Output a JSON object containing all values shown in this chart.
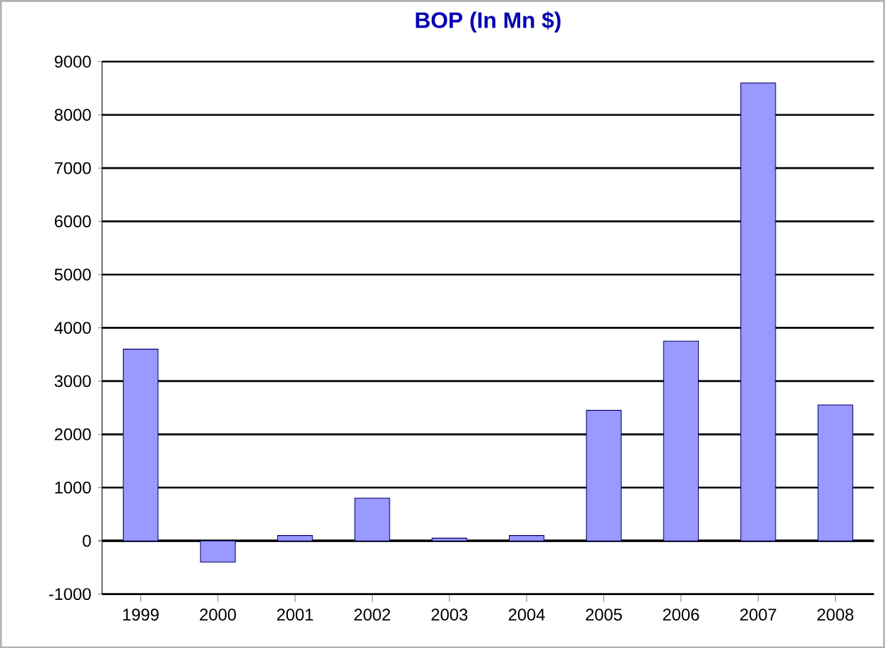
{
  "chart_data": {
    "type": "bar",
    "title": "BOP (In Mn $)",
    "categories": [
      "1999",
      "2000",
      "2001",
      "2002",
      "2003",
      "2004",
      "2005",
      "2006",
      "2007",
      "2008"
    ],
    "values": [
      3600,
      -400,
      100,
      800,
      50,
      100,
      2450,
      3750,
      8600,
      2550
    ],
    "color": "#9999ff",
    "ylim": [
      -1000,
      9000
    ],
    "yticks": [
      -1000,
      0,
      1000,
      2000,
      3000,
      4000,
      5000,
      6000,
      7000,
      8000,
      9000
    ],
    "grid": "y"
  }
}
